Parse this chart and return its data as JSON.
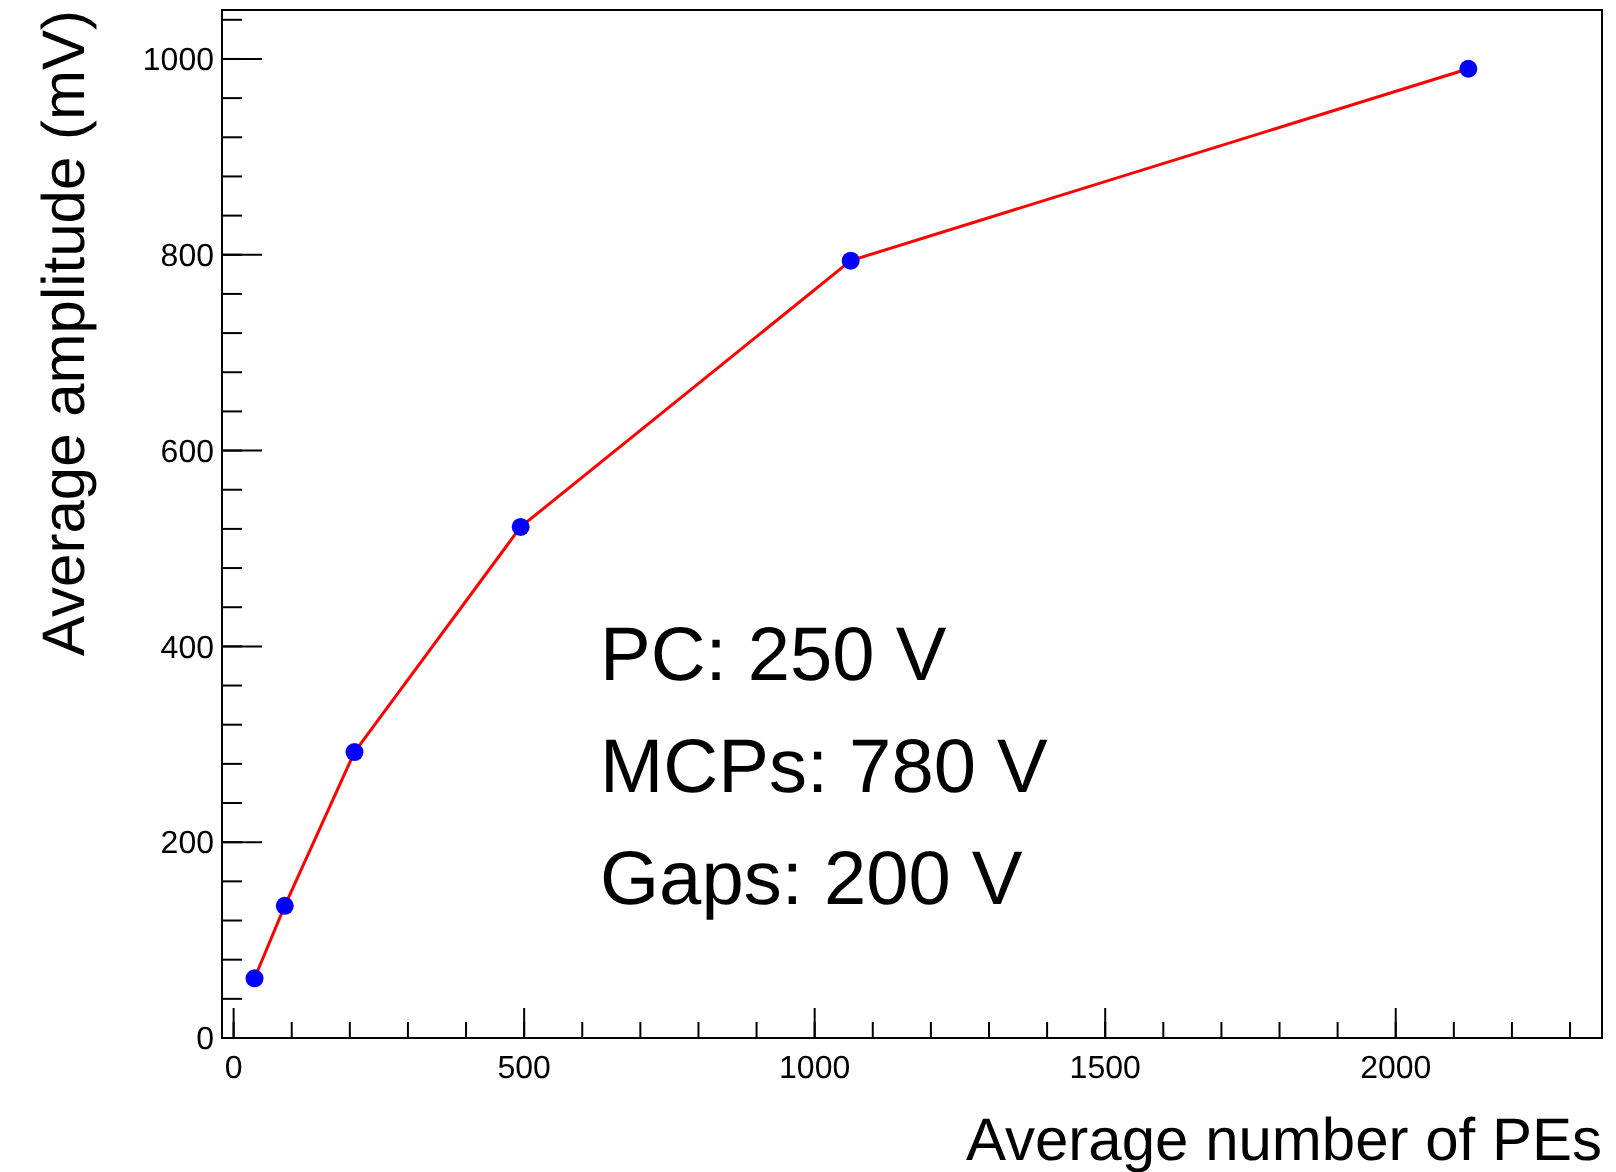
{
  "chart_data": {
    "type": "line",
    "xlabel": "Average number of PEs",
    "ylabel": "Average amplitude (mV)",
    "x": [
      36,
      88,
      208,
      494,
      1062,
      2125
    ],
    "series": [
      {
        "color": "#ff0000",
        "values": [
          61,
          135,
          292,
          522,
          794,
          990
        ]
      }
    ],
    "marker": "circle",
    "xlim": [
      -20,
      2355
    ],
    "ylim": [
      0,
      1050
    ],
    "xticks": [
      0,
      500,
      1000,
      1500,
      2000
    ],
    "yticks": [
      0,
      200,
      400,
      600,
      800,
      1000
    ],
    "annotations": [
      "PC: 250 V",
      "MCPs: 780 V",
      "Gaps: 200 V"
    ]
  }
}
